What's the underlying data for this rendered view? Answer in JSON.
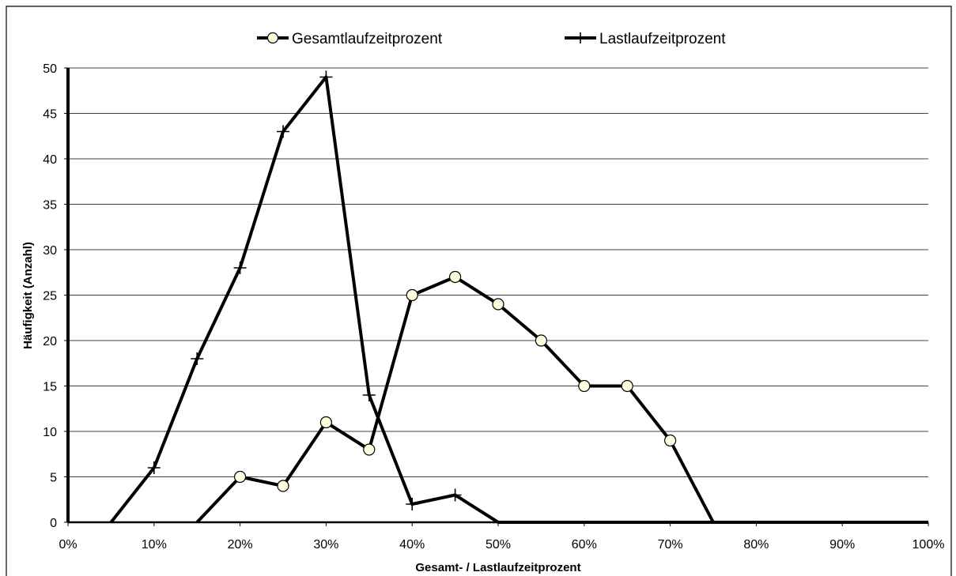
{
  "chart_data": {
    "type": "line",
    "title": "",
    "xlabel": "Gesamt- / Lastlaufzeitprozent",
    "ylabel": "Häufigkeit (Anzahl)",
    "xlim": [
      0,
      100
    ],
    "ylim": [
      0,
      50
    ],
    "x_ticks": [
      "0%",
      "10%",
      "20%",
      "30%",
      "40%",
      "50%",
      "60%",
      "70%",
      "80%",
      "90%",
      "100%"
    ],
    "y_ticks": [
      "0",
      "5",
      "10",
      "15",
      "20",
      "25",
      "30",
      "35",
      "40",
      "45",
      "50"
    ],
    "grid": "horizontal",
    "legend_position": "top",
    "series": [
      {
        "name": "Gesamtlaufzeitprozent",
        "marker": "circle",
        "color": "#000000",
        "marker_fill": "#ffffe0",
        "points": [
          [
            15,
            0
          ],
          [
            20,
            5
          ],
          [
            25,
            4
          ],
          [
            30,
            11
          ],
          [
            35,
            8
          ],
          [
            40,
            25
          ],
          [
            45,
            27
          ],
          [
            50,
            24
          ],
          [
            55,
            20
          ],
          [
            60,
            15
          ],
          [
            65,
            15
          ],
          [
            70,
            9
          ],
          [
            75,
            0
          ],
          [
            80,
            0
          ],
          [
            85,
            0
          ],
          [
            90,
            0
          ],
          [
            95,
            0
          ],
          [
            100,
            0
          ]
        ]
      },
      {
        "name": "Lastlaufzeitprozent",
        "marker": "plus",
        "color": "#000000",
        "points": [
          [
            5,
            0
          ],
          [
            10,
            6
          ],
          [
            15,
            18
          ],
          [
            20,
            28
          ],
          [
            25,
            43
          ],
          [
            30,
            49
          ],
          [
            35,
            14
          ],
          [
            40,
            2
          ],
          [
            45,
            3
          ],
          [
            50,
            0
          ],
          [
            55,
            0
          ],
          [
            60,
            0
          ],
          [
            65,
            0
          ],
          [
            70,
            0
          ],
          [
            75,
            0
          ],
          [
            80,
            0
          ],
          [
            85,
            0
          ],
          [
            90,
            0
          ],
          [
            95,
            0
          ],
          [
            100,
            0
          ]
        ]
      }
    ]
  }
}
